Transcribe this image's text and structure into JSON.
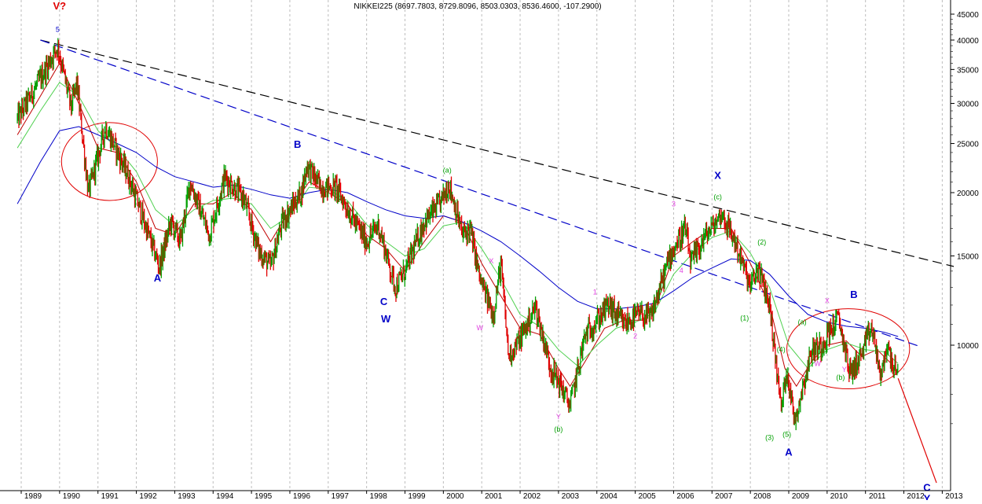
{
  "chart_data": {
    "type": "line",
    "title": "NIKKEI225 (8697.7803, 8729.8096, 8503.0303, 8536.4600, -107.2900)",
    "ylabel": "",
    "xlabel": "",
    "y_scale": "log",
    "ylim": [
      6000,
      48000
    ],
    "xlim": [
      1988.9,
      2013.5
    ],
    "grid": {
      "vertical": true,
      "horizontal": false
    },
    "y_ticks": [
      "45000",
      "40000",
      "35000",
      "30000",
      "25000",
      "20000",
      "15000",
      "10000"
    ],
    "x_ticks": [
      "1989",
      "1990",
      "1991",
      "1992",
      "1993",
      "1994",
      "1995",
      "1996",
      "1997",
      "1998",
      "1999",
      "2000",
      "2001",
      "2002",
      "2003",
      "2004",
      "2005",
      "2006",
      "2007",
      "2008",
      "2009",
      "2010",
      "2011",
      "2012",
      "2013"
    ],
    "price_series": {
      "colors": {
        "up": "#00a000",
        "down": "#e00000"
      },
      "pivots": [
        [
          1988.9,
          28000
        ],
        [
          1989.4,
          32500
        ],
        [
          1989.95,
          38900
        ],
        [
          1990.3,
          29500
        ],
        [
          1990.45,
          33000
        ],
        [
          1990.75,
          20000
        ],
        [
          1991.2,
          27000
        ],
        [
          1991.8,
          21500
        ],
        [
          1992.6,
          14300
        ],
        [
          1992.9,
          17500
        ],
        [
          1993.15,
          16000
        ],
        [
          1993.4,
          21000
        ],
        [
          1993.9,
          16500
        ],
        [
          1994.3,
          21500
        ],
        [
          1994.8,
          19500
        ],
        [
          1995.2,
          15300
        ],
        [
          1995.5,
          14300
        ],
        [
          1995.8,
          17500
        ],
        [
          1996.3,
          20000
        ],
        [
          1996.45,
          22700
        ],
        [
          1996.8,
          20500
        ],
        [
          1997.2,
          20500
        ],
        [
          1997.6,
          18000
        ],
        [
          1998.0,
          16000
        ],
        [
          1998.3,
          17300
        ],
        [
          1998.75,
          13000
        ],
        [
          1999.0,
          14000
        ],
        [
          1999.5,
          17500
        ],
        [
          1999.9,
          19000
        ],
        [
          2000.15,
          20800
        ],
        [
          2000.5,
          16500
        ],
        [
          2000.7,
          17000
        ],
        [
          2000.95,
          13500
        ],
        [
          2001.3,
          11500
        ],
        [
          2001.5,
          14500
        ],
        [
          2001.7,
          9500
        ],
        [
          2002.0,
          10300
        ],
        [
          2002.4,
          11900
        ],
        [
          2002.8,
          9000
        ],
        [
          2003.0,
          8500
        ],
        [
          2003.3,
          7600
        ],
        [
          2003.7,
          10500
        ],
        [
          2004.0,
          11200
        ],
        [
          2004.3,
          12000
        ],
        [
          2004.7,
          11000
        ],
        [
          2005.1,
          11500
        ],
        [
          2005.4,
          11300
        ],
        [
          2005.9,
          15000
        ],
        [
          2006.3,
          17000
        ],
        [
          2006.45,
          14500
        ],
        [
          2006.8,
          16300
        ],
        [
          2007.1,
          17500
        ],
        [
          2007.25,
          18200
        ],
        [
          2007.6,
          16000
        ],
        [
          2008.0,
          13000
        ],
        [
          2008.2,
          14200
        ],
        [
          2008.5,
          12000
        ],
        [
          2008.8,
          7500
        ],
        [
          2008.95,
          9000
        ],
        [
          2009.15,
          7100
        ],
        [
          2009.6,
          9800
        ],
        [
          2009.85,
          10000
        ],
        [
          2010.0,
          10500
        ],
        [
          2010.3,
          11300
        ],
        [
          2010.6,
          8800
        ],
        [
          2010.9,
          9600
        ],
        [
          2011.15,
          10800
        ],
        [
          2011.3,
          9600
        ],
        [
          2011.4,
          8500
        ],
        [
          2011.55,
          10000
        ],
        [
          2011.65,
          9500
        ],
        [
          2011.85,
          8550
        ]
      ]
    },
    "moving_averages": [
      {
        "color": "#c00000",
        "points": [
          [
            1988.9,
            26000
          ],
          [
            1989.5,
            31000
          ],
          [
            1990.0,
            36000
          ],
          [
            1990.5,
            30000
          ],
          [
            1991.0,
            24500
          ],
          [
            1991.5,
            24000
          ],
          [
            1992.0,
            21000
          ],
          [
            1992.5,
            17000
          ],
          [
            1993.0,
            16500
          ],
          [
            1993.5,
            19000
          ],
          [
            1994.0,
            19000
          ],
          [
            1994.5,
            20000
          ],
          [
            1995.0,
            18500
          ],
          [
            1995.5,
            16000
          ],
          [
            1996.0,
            18500
          ],
          [
            1996.5,
            21000
          ],
          [
            1997.0,
            20000
          ],
          [
            1997.5,
            19000
          ],
          [
            1998.0,
            16500
          ],
          [
            1998.5,
            15500
          ],
          [
            1999.0,
            14000
          ],
          [
            1999.5,
            16000
          ],
          [
            2000.0,
            18000
          ],
          [
            2000.5,
            17500
          ],
          [
            2001.0,
            14500
          ],
          [
            2001.5,
            12500
          ],
          [
            2002.0,
            10800
          ],
          [
            2002.5,
            10500
          ],
          [
            2003.0,
            9000
          ],
          [
            2003.3,
            8300
          ],
          [
            2003.7,
            9300
          ],
          [
            2004.2,
            10800
          ],
          [
            2004.7,
            11200
          ],
          [
            2005.2,
            11200
          ],
          [
            2005.6,
            12300
          ],
          [
            2006.0,
            15000
          ],
          [
            2006.5,
            16000
          ],
          [
            2007.0,
            17000
          ],
          [
            2007.5,
            17000
          ],
          [
            2008.0,
            14500
          ],
          [
            2008.5,
            12000
          ],
          [
            2008.9,
            9000
          ],
          [
            2009.2,
            8300
          ],
          [
            2009.6,
            9300
          ],
          [
            2010.0,
            10000
          ],
          [
            2010.5,
            10200
          ],
          [
            2010.9,
            9500
          ],
          [
            2011.3,
            9800
          ],
          [
            2011.8,
            9000
          ]
        ]
      },
      {
        "color": "#50d050",
        "points": [
          [
            1988.9,
            24500
          ],
          [
            1989.5,
            29000
          ],
          [
            1990.0,
            33000
          ],
          [
            1990.5,
            31000
          ],
          [
            1991.0,
            26500
          ],
          [
            1991.5,
            24500
          ],
          [
            1992.0,
            22000
          ],
          [
            1992.5,
            18500
          ],
          [
            1993.0,
            17200
          ],
          [
            1993.5,
            18500
          ],
          [
            1994.0,
            19300
          ],
          [
            1994.5,
            19500
          ],
          [
            1995.0,
            19000
          ],
          [
            1995.5,
            17000
          ],
          [
            1996.0,
            18000
          ],
          [
            1996.5,
            20500
          ],
          [
            1997.0,
            20300
          ],
          [
            1997.5,
            19300
          ],
          [
            1998.0,
            17300
          ],
          [
            1998.5,
            16000
          ],
          [
            1999.0,
            15000
          ],
          [
            1999.5,
            15500
          ],
          [
            2000.0,
            17200
          ],
          [
            2000.5,
            17500
          ],
          [
            2001.0,
            15500
          ],
          [
            2001.5,
            13500
          ],
          [
            2002.0,
            11500
          ],
          [
            2002.5,
            10900
          ],
          [
            2003.0,
            9800
          ],
          [
            2003.5,
            9100
          ],
          [
            2004.0,
            10000
          ],
          [
            2004.5,
            10800
          ],
          [
            2005.0,
            11100
          ],
          [
            2005.5,
            11600
          ],
          [
            2006.0,
            13800
          ],
          [
            2006.5,
            15200
          ],
          [
            2007.0,
            16300
          ],
          [
            2007.5,
            16800
          ],
          [
            2008.0,
            15200
          ],
          [
            2008.5,
            13000
          ],
          [
            2009.0,
            10000
          ],
          [
            2009.5,
            9000
          ],
          [
            2010.0,
            9800
          ],
          [
            2010.5,
            10100
          ],
          [
            2011.0,
            9800
          ],
          [
            2011.5,
            9700
          ],
          [
            2011.85,
            9200
          ]
        ]
      },
      {
        "color": "#0000c8",
        "points": [
          [
            1988.9,
            19000
          ],
          [
            1989.5,
            23000
          ],
          [
            1990.0,
            26500
          ],
          [
            1990.5,
            27000
          ],
          [
            1991.0,
            26000
          ],
          [
            1991.5,
            25000
          ],
          [
            1992.0,
            24000
          ],
          [
            1992.5,
            22500
          ],
          [
            1993.0,
            21500
          ],
          [
            1993.5,
            21000
          ],
          [
            1994.0,
            20500
          ],
          [
            1994.5,
            20700
          ],
          [
            1995.0,
            20300
          ],
          [
            1995.5,
            19800
          ],
          [
            1996.0,
            19500
          ],
          [
            1996.5,
            20000
          ],
          [
            1997.0,
            20300
          ],
          [
            1997.5,
            20000
          ],
          [
            1998.0,
            19200
          ],
          [
            1998.5,
            18500
          ],
          [
            1999.0,
            18000
          ],
          [
            1999.5,
            17800
          ],
          [
            2000.0,
            18000
          ],
          [
            2000.5,
            17500
          ],
          [
            2001.0,
            16800
          ],
          [
            2001.5,
            16000
          ],
          [
            2002.0,
            15000
          ],
          [
            2002.5,
            14000
          ],
          [
            2003.0,
            13000
          ],
          [
            2003.5,
            12200
          ],
          [
            2004.0,
            11800
          ],
          [
            2004.5,
            11800
          ],
          [
            2005.0,
            11900
          ],
          [
            2005.5,
            12100
          ],
          [
            2006.0,
            12800
          ],
          [
            2006.5,
            13600
          ],
          [
            2007.0,
            14200
          ],
          [
            2007.5,
            14800
          ],
          [
            2008.0,
            14700
          ],
          [
            2008.5,
            13800
          ],
          [
            2009.0,
            12500
          ],
          [
            2009.5,
            11500
          ],
          [
            2010.0,
            11100
          ],
          [
            2010.5,
            10900
          ],
          [
            2011.0,
            10800
          ],
          [
            2011.5,
            10600
          ],
          [
            2011.85,
            10400
          ]
        ]
      }
    ],
    "trendlines": [
      {
        "color": "#000000",
        "dash": true,
        "points": [
          [
            1989.5,
            40000
          ],
          [
            2013.3,
            14300
          ]
        ]
      },
      {
        "color": "#0000c8",
        "dash": true,
        "points": [
          [
            1989.5,
            40000
          ],
          [
            2012.4,
            9950
          ]
        ]
      },
      {
        "color": "#e00000",
        "dash": false,
        "points": [
          [
            2011.85,
            8600
          ],
          [
            2012.85,
            5350
          ]
        ]
      }
    ],
    "ellipses": [
      {
        "color": "#e00000",
        "center": [
          1991.3,
          23000
        ],
        "rx": 1.25,
        "ry_top": 27500,
        "ry_bottom": 19300
      },
      {
        "color": "#e00000",
        "center": [
          2010.55,
          9900
        ],
        "rx": 1.6,
        "ry_top": 11800,
        "ry_bottom": 8200
      }
    ],
    "annotations": [
      {
        "text": "V?",
        "x": 1990.0,
        "y": 46000,
        "color": "#e00000"
      },
      {
        "text": "5",
        "x": 1989.95,
        "y": 41500,
        "color": "#0000c8"
      },
      {
        "text": "A",
        "x": 1992.55,
        "y": 13350,
        "color": "#0000c8"
      },
      {
        "text": "B",
        "x": 1996.2,
        "y": 24500,
        "color": "#0000c8"
      },
      {
        "text": "C",
        "x": 1998.45,
        "y": 12000,
        "color": "#0000c8"
      },
      {
        "text": "W",
        "x": 1998.5,
        "y": 11100,
        "color": "#0000c8"
      },
      {
        "text": "(a)",
        "x": 2000.1,
        "y": 21900,
        "color": "#00a000"
      },
      {
        "text": "X",
        "x": 2001.25,
        "y": 14500,
        "color": "#e040e0"
      },
      {
        "text": "W",
        "x": 2000.95,
        "y": 10700,
        "color": "#e040e0"
      },
      {
        "text": "Y",
        "x": 2003.0,
        "y": 7150,
        "color": "#e040e0"
      },
      {
        "text": "(b)",
        "x": 2003.0,
        "y": 6750,
        "color": "#00a000"
      },
      {
        "text": "1",
        "x": 2003.95,
        "y": 12600,
        "color": "#e040e0"
      },
      {
        "text": "2",
        "x": 2005.0,
        "y": 10300,
        "color": "#e040e0"
      },
      {
        "text": "3",
        "x": 2006.0,
        "y": 18800,
        "color": "#e040e0"
      },
      {
        "text": "4",
        "x": 2006.2,
        "y": 13900,
        "color": "#e040e0"
      },
      {
        "text": "(c)",
        "x": 2007.15,
        "y": 19400,
        "color": "#00a000"
      },
      {
        "text": "X",
        "x": 2007.15,
        "y": 21300,
        "color": "#0000c8"
      },
      {
        "text": "(2)",
        "x": 2008.3,
        "y": 15800,
        "color": "#00a000"
      },
      {
        "text": "(1)",
        "x": 2007.85,
        "y": 11200,
        "color": "#00a000"
      },
      {
        "text": "(4)",
        "x": 2008.8,
        "y": 9700,
        "color": "#00a000"
      },
      {
        "text": "(3)",
        "x": 2008.5,
        "y": 6500,
        "color": "#00a000"
      },
      {
        "text": "(5)",
        "x": 2008.95,
        "y": 6600,
        "color": "#00a000"
      },
      {
        "text": "A",
        "x": 2009.0,
        "y": 6050,
        "color": "#0000c8"
      },
      {
        "text": "(a)",
        "x": 2009.35,
        "y": 11000,
        "color": "#00a000"
      },
      {
        "text": "W",
        "x": 2009.75,
        "y": 9100,
        "color": "#e040e0"
      },
      {
        "text": "X",
        "x": 2010.0,
        "y": 12100,
        "color": "#e040e0"
      },
      {
        "text": "B",
        "x": 2010.7,
        "y": 12400,
        "color": "#0000c8"
      },
      {
        "text": "Y",
        "x": 2010.45,
        "y": 8850,
        "color": "#e040e0"
      },
      {
        "text": "(b)",
        "x": 2010.35,
        "y": 8550,
        "color": "#00a000"
      },
      {
        "text": "C",
        "x": 2012.6,
        "y": 5150,
        "color": "#0000c8"
      },
      {
        "text": "Y",
        "x": 2012.6,
        "y": 4900,
        "color": "#0000c8"
      }
    ]
  }
}
